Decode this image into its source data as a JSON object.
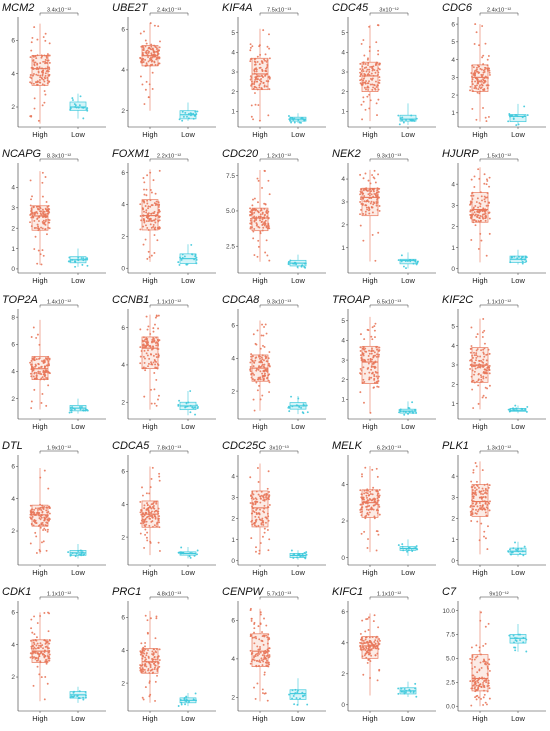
{
  "figure": {
    "colors": {
      "high": "#e8775a",
      "low": "#3ec9dc",
      "high_fill": "#fbe4dc",
      "low_fill": "#c7f0f6"
    }
  },
  "chart_data": [
    {
      "type": "box",
      "gene": "MCM2",
      "p_value": "3.4x10⁻¹²",
      "categories": [
        "High",
        "Low"
      ],
      "yticks": [
        2,
        4,
        6
      ],
      "ylim": [
        0.8,
        7.4
      ],
      "High": {
        "min": 1.0,
        "q1": 3.3,
        "median": 4.3,
        "q3": 5.1,
        "max": 7.0
      },
      "Low": {
        "min": 1.3,
        "q1": 1.8,
        "median": 2.0,
        "q3": 2.3,
        "max": 2.8
      }
    },
    {
      "type": "box",
      "gene": "UBE2T",
      "p_value": "2.4x10⁻¹³",
      "categories": [
        "High",
        "Low"
      ],
      "yticks": [
        2,
        4,
        6
      ],
      "ylim": [
        1.2,
        6.6
      ],
      "High": {
        "min": 2.0,
        "q1": 4.2,
        "median": 4.7,
        "q3": 5.2,
        "max": 6.3
      },
      "Low": {
        "min": 1.5,
        "q1": 1.6,
        "median": 1.8,
        "q3": 2.0,
        "max": 2.4
      }
    },
    {
      "type": "box",
      "gene": "KIF4A",
      "p_value": "7.5x10⁻¹³",
      "categories": [
        "High",
        "Low"
      ],
      "yticks": [
        1,
        2,
        3,
        4,
        5
      ],
      "ylim": [
        0.2,
        5.8
      ],
      "High": {
        "min": 0.5,
        "q1": 2.1,
        "median": 2.9,
        "q3": 3.7,
        "max": 5.2
      },
      "Low": {
        "min": 0.4,
        "q1": 0.5,
        "median": 0.6,
        "q3": 0.7,
        "max": 0.9
      }
    },
    {
      "type": "box",
      "gene": "CDC45",
      "p_value": "3x10⁻¹²",
      "categories": [
        "High",
        "Low"
      ],
      "yticks": [
        1,
        2,
        3,
        4,
        5
      ],
      "ylim": [
        0.2,
        5.8
      ],
      "High": {
        "min": 0.5,
        "q1": 2.0,
        "median": 2.8,
        "q3": 3.5,
        "max": 5.4
      },
      "Low": {
        "min": 0.3,
        "q1": 0.5,
        "median": 0.6,
        "q3": 0.8,
        "max": 1.4
      }
    },
    {
      "type": "box",
      "gene": "CDC6",
      "p_value": "2.4x10⁻¹²",
      "categories": [
        "High",
        "Low"
      ],
      "yticks": [
        1,
        2,
        3,
        4,
        5,
        6
      ],
      "ylim": [
        0.2,
        6.4
      ],
      "High": {
        "min": 0.5,
        "q1": 2.2,
        "median": 3.0,
        "q3": 3.7,
        "max": 6.0
      },
      "Low": {
        "min": 0.3,
        "q1": 0.5,
        "median": 0.8,
        "q3": 0.9,
        "max": 1.5
      }
    },
    {
      "type": "box",
      "gene": "NCAPG",
      "p_value": "8.3x10⁻¹²",
      "categories": [
        "High",
        "Low"
      ],
      "yticks": [
        0,
        1,
        2,
        3,
        4
      ],
      "ylim": [
        -0.2,
        5.2
      ],
      "High": {
        "min": 0.2,
        "q1": 1.9,
        "median": 2.6,
        "q3": 3.1,
        "max": 4.8
      },
      "Low": {
        "min": 0.1,
        "q1": 0.3,
        "median": 0.45,
        "q3": 0.6,
        "max": 1.0
      }
    },
    {
      "type": "box",
      "gene": "FOXM1",
      "p_value": "2.2x10⁻¹²",
      "categories": [
        "High",
        "Low"
      ],
      "yticks": [
        0,
        2,
        4,
        6
      ],
      "ylim": [
        -0.3,
        6.6
      ],
      "High": {
        "min": 0.4,
        "q1": 2.4,
        "median": 3.3,
        "q3": 4.3,
        "max": 6.2
      },
      "Low": {
        "min": 0.2,
        "q1": 0.3,
        "median": 0.6,
        "q3": 0.9,
        "max": 1.5
      }
    },
    {
      "type": "box",
      "gene": "CDC20",
      "p_value": "1.2x10⁻¹²",
      "categories": [
        "High",
        "Low"
      ],
      "yticks": [
        2.5,
        5.0,
        7.5
      ],
      "ylim": [
        0.6,
        8.4
      ],
      "High": {
        "min": 1.4,
        "q1": 3.6,
        "median": 4.5,
        "q3": 5.2,
        "max": 7.9
      },
      "Low": {
        "min": 0.9,
        "q1": 1.1,
        "median": 1.3,
        "q3": 1.5,
        "max": 1.9
      }
    },
    {
      "type": "box",
      "gene": "NEK2",
      "p_value": "9.3x10⁻¹³",
      "categories": [
        "High",
        "Low"
      ],
      "yticks": [
        1,
        2,
        3,
        4
      ],
      "ylim": [
        -0.1,
        4.7
      ],
      "High": {
        "min": 0.4,
        "q1": 2.4,
        "median": 3.2,
        "q3": 3.6,
        "max": 4.4
      },
      "Low": {
        "min": 0.1,
        "q1": 0.3,
        "median": 0.45,
        "q3": 0.5,
        "max": 0.8
      }
    },
    {
      "type": "box",
      "gene": "HJURP",
      "p_value": "1.5x10⁻¹²",
      "categories": [
        "High",
        "Low"
      ],
      "yticks": [
        0,
        1,
        2,
        3,
        4
      ],
      "ylim": [
        -0.2,
        5.0
      ],
      "High": {
        "min": 0.3,
        "q1": 2.2,
        "median": 2.8,
        "q3": 3.6,
        "max": 4.8
      },
      "Low": {
        "min": 0.2,
        "q1": 0.3,
        "median": 0.45,
        "q3": 0.6,
        "max": 0.9
      }
    },
    {
      "type": "box",
      "gene": "TOP2A",
      "p_value": "1.4x10⁻¹²",
      "categories": [
        "High",
        "Low"
      ],
      "yticks": [
        2,
        4,
        6,
        8
      ],
      "ylim": [
        0.5,
        8.6
      ],
      "High": {
        "min": 1.2,
        "q1": 3.4,
        "median": 4.2,
        "q3": 5.1,
        "max": 7.8
      },
      "Low": {
        "min": 0.9,
        "q1": 1.1,
        "median": 1.3,
        "q3": 1.5,
        "max": 2.0
      }
    },
    {
      "type": "box",
      "gene": "CCNB1",
      "p_value": "1.1x10⁻¹²",
      "categories": [
        "High",
        "Low"
      ],
      "yticks": [
        2,
        4,
        6
      ],
      "ylim": [
        1.1,
        7.0
      ],
      "High": {
        "min": 1.6,
        "q1": 3.8,
        "median": 4.9,
        "q3": 5.5,
        "max": 6.7
      },
      "Low": {
        "min": 1.3,
        "q1": 1.6,
        "median": 1.8,
        "q3": 2.0,
        "max": 2.6
      }
    },
    {
      "type": "box",
      "gene": "CDCA8",
      "p_value": "9.3x10⁻¹³",
      "categories": [
        "High",
        "Low"
      ],
      "yticks": [
        2,
        4,
        6
      ],
      "ylim": [
        0.3,
        7.0
      ],
      "High": {
        "min": 0.8,
        "q1": 2.6,
        "median": 3.4,
        "q3": 4.2,
        "max": 6.3
      },
      "Low": {
        "min": 0.6,
        "q1": 0.9,
        "median": 1.1,
        "q3": 1.3,
        "max": 1.7
      }
    },
    {
      "type": "box",
      "gene": "TROAP",
      "p_value": "6.5x10⁻¹³",
      "categories": [
        "High",
        "Low"
      ],
      "yticks": [
        1,
        2,
        3,
        4,
        5
      ],
      "ylim": [
        0.0,
        5.6
      ],
      "High": {
        "min": 0.3,
        "q1": 1.8,
        "median": 2.9,
        "q3": 3.7,
        "max": 5.2
      },
      "Low": {
        "min": 0.2,
        "q1": 0.3,
        "median": 0.4,
        "q3": 0.5,
        "max": 0.9
      }
    },
    {
      "type": "box",
      "gene": "KIF2C",
      "p_value": "1.1x10⁻¹²",
      "categories": [
        "High",
        "Low"
      ],
      "yticks": [
        1,
        2,
        3,
        4,
        5
      ],
      "ylim": [
        0.2,
        5.9
      ],
      "High": {
        "min": 0.7,
        "q1": 2.1,
        "median": 3.0,
        "q3": 3.9,
        "max": 5.4
      },
      "Low": {
        "min": 0.5,
        "q1": 0.6,
        "median": 0.65,
        "q3": 0.75,
        "max": 0.9
      }
    },
    {
      "type": "box",
      "gene": "DTL",
      "p_value": "1.9x10⁻¹²",
      "categories": [
        "High",
        "Low"
      ],
      "yticks": [
        2,
        4,
        6
      ],
      "ylim": [
        -0.1,
        6.7
      ],
      "High": {
        "min": 0.6,
        "q1": 2.3,
        "median": 3.0,
        "q3": 3.6,
        "max": 5.9
      },
      "Low": {
        "min": 0.3,
        "q1": 0.5,
        "median": 0.65,
        "q3": 0.8,
        "max": 1.2
      }
    },
    {
      "type": "box",
      "gene": "CDCA5",
      "p_value": "7.8x10⁻¹³",
      "categories": [
        "High",
        "Low"
      ],
      "yticks": [
        2,
        4,
        6
      ],
      "ylim": [
        0.3,
        7.0
      ],
      "High": {
        "min": 0.9,
        "q1": 2.6,
        "median": 3.4,
        "q3": 4.2,
        "max": 6.3
      },
      "Low": {
        "min": 0.7,
        "q1": 0.9,
        "median": 1.0,
        "q3": 1.1,
        "max": 1.4
      }
    },
    {
      "type": "box",
      "gene": "CDC25C",
      "p_value": "3x10⁻¹³",
      "categories": [
        "High",
        "Low"
      ],
      "yticks": [
        0,
        1,
        2,
        3,
        4
      ],
      "ylim": [
        -0.2,
        5.0
      ],
      "High": {
        "min": 0.3,
        "q1": 1.6,
        "median": 2.5,
        "q3": 3.3,
        "max": 4.6
      },
      "Low": {
        "min": 0.05,
        "q1": 0.15,
        "median": 0.25,
        "q3": 0.35,
        "max": 0.5
      }
    },
    {
      "type": "box",
      "gene": "MELK",
      "p_value": "6.2x10⁻¹³",
      "categories": [
        "High",
        "Low"
      ],
      "yticks": [
        0,
        2,
        4
      ],
      "ylim": [
        -0.4,
        5.6
      ],
      "High": {
        "min": 0.3,
        "q1": 2.2,
        "median": 3.0,
        "q3": 3.7,
        "max": 5.0
      },
      "Low": {
        "min": 0.1,
        "q1": 0.4,
        "median": 0.5,
        "q3": 0.6,
        "max": 1.0
      }
    },
    {
      "type": "box",
      "gene": "PLK1",
      "p_value": "1.3x10⁻¹²",
      "categories": [
        "High",
        "Low"
      ],
      "yticks": [
        0,
        1,
        2,
        3,
        4
      ],
      "ylim": [
        -0.2,
        5.0
      ],
      "High": {
        "min": 0.3,
        "q1": 2.1,
        "median": 2.8,
        "q3": 3.6,
        "max": 4.7
      },
      "Low": {
        "min": 0.2,
        "q1": 0.3,
        "median": 0.45,
        "q3": 0.6,
        "max": 0.9
      }
    },
    {
      "type": "box",
      "gene": "CDK1",
      "p_value": "1.1x10⁻¹²",
      "categories": [
        "High",
        "Low"
      ],
      "yticks": [
        2,
        4,
        6
      ],
      "ylim": [
        -0.1,
        6.7
      ],
      "High": {
        "min": 0.5,
        "q1": 2.9,
        "median": 3.6,
        "q3": 4.3,
        "max": 6.0
      },
      "Low": {
        "min": 0.4,
        "q1": 0.7,
        "median": 0.9,
        "q3": 1.1,
        "max": 1.4
      }
    },
    {
      "type": "box",
      "gene": "PRC1",
      "p_value": "4.8x10⁻¹³",
      "categories": [
        "High",
        "Low"
      ],
      "yticks": [
        2,
        4,
        6
      ],
      "ylim": [
        0.3,
        7.0
      ],
      "High": {
        "min": 0.8,
        "q1": 2.6,
        "median": 3.3,
        "q3": 4.1,
        "max": 6.4
      },
      "Low": {
        "min": 0.6,
        "q1": 0.8,
        "median": 0.95,
        "q3": 1.1,
        "max": 1.4
      }
    },
    {
      "type": "box",
      "gene": "CENPW",
      "p_value": "5.7x10⁻¹³",
      "categories": [
        "High",
        "Low"
      ],
      "yticks": [
        2,
        4,
        6
      ],
      "ylim": [
        1.3,
        7.0
      ],
      "High": {
        "min": 1.8,
        "q1": 3.6,
        "median": 4.4,
        "q3": 5.3,
        "max": 6.6
      },
      "Low": {
        "min": 1.6,
        "q1": 1.9,
        "median": 2.2,
        "q3": 2.4,
        "max": 3.0
      }
    },
    {
      "type": "box",
      "gene": "KIFC1",
      "p_value": "1.1x10⁻¹²",
      "categories": [
        "High",
        "Low"
      ],
      "yticks": [
        0,
        2,
        4,
        6
      ],
      "ylim": [
        -0.4,
        6.7
      ],
      "High": {
        "min": 0.6,
        "q1": 3.0,
        "median": 3.8,
        "q3": 4.4,
        "max": 5.9
      },
      "Low": {
        "min": 0.5,
        "q1": 0.7,
        "median": 0.9,
        "q3": 1.1,
        "max": 1.5
      }
    },
    {
      "type": "box",
      "gene": "C7",
      "p_value": "9x10⁻¹²",
      "categories": [
        "High",
        "Low"
      ],
      "yticks": [
        0.0,
        2.5,
        5.0,
        7.5,
        10.0
      ],
      "ylim": [
        -0.5,
        11.0
      ],
      "High": {
        "min": 0.0,
        "q1": 1.6,
        "median": 2.9,
        "q3": 5.4,
        "max": 10.0
      },
      "Low": {
        "min": 5.7,
        "q1": 6.6,
        "median": 7.1,
        "q3": 7.5,
        "max": 8.6
      }
    }
  ]
}
